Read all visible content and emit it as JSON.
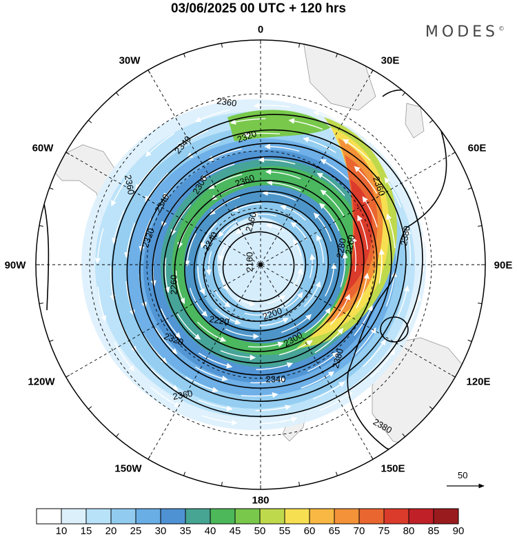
{
  "header": {
    "title": "03/06/2025  00 UTC  + 120 hrs",
    "brand": "MODES",
    "brand_mark": "©"
  },
  "map": {
    "projection": "polar-stereographic",
    "pole": "south",
    "longitude_labels": {
      "top": "0",
      "top_left": "30W",
      "top_right": "30E",
      "upper_left": "60W",
      "upper_right": "60E",
      "left": "90W",
      "right": "90E",
      "lower_left": "120W",
      "lower_right": "120E",
      "bottom_left": "150W",
      "bottom_right": "150E",
      "bottom": "180"
    },
    "contour_labels": [
      "2360",
      "2320",
      "2340",
      "2360",
      "2300",
      "2360",
      "2340",
      "2160",
      "2320",
      "2240",
      "2160",
      "2280",
      "2260",
      "2200",
      "2220",
      "2260",
      "2380",
      "2300",
      "2320",
      "2360",
      "2360",
      "2340",
      "2380",
      "2380"
    ],
    "reference_vector": "50"
  },
  "colorbar": {
    "labels": [
      "10",
      "15",
      "20",
      "25",
      "30",
      "35",
      "40",
      "45",
      "50",
      "55",
      "60",
      "65",
      "70",
      "75",
      "80",
      "85",
      "90"
    ],
    "colors": [
      "#ffffff",
      "#dcf0fc",
      "#b8e2f8",
      "#91ccf0",
      "#6aaee6",
      "#4e92d3",
      "#46a593",
      "#4cb85a",
      "#79c84c",
      "#bfd94c",
      "#f7df52",
      "#f9b843",
      "#f39239",
      "#ea6631",
      "#db3b2b",
      "#c02027",
      "#9a1b1e"
    ]
  }
}
